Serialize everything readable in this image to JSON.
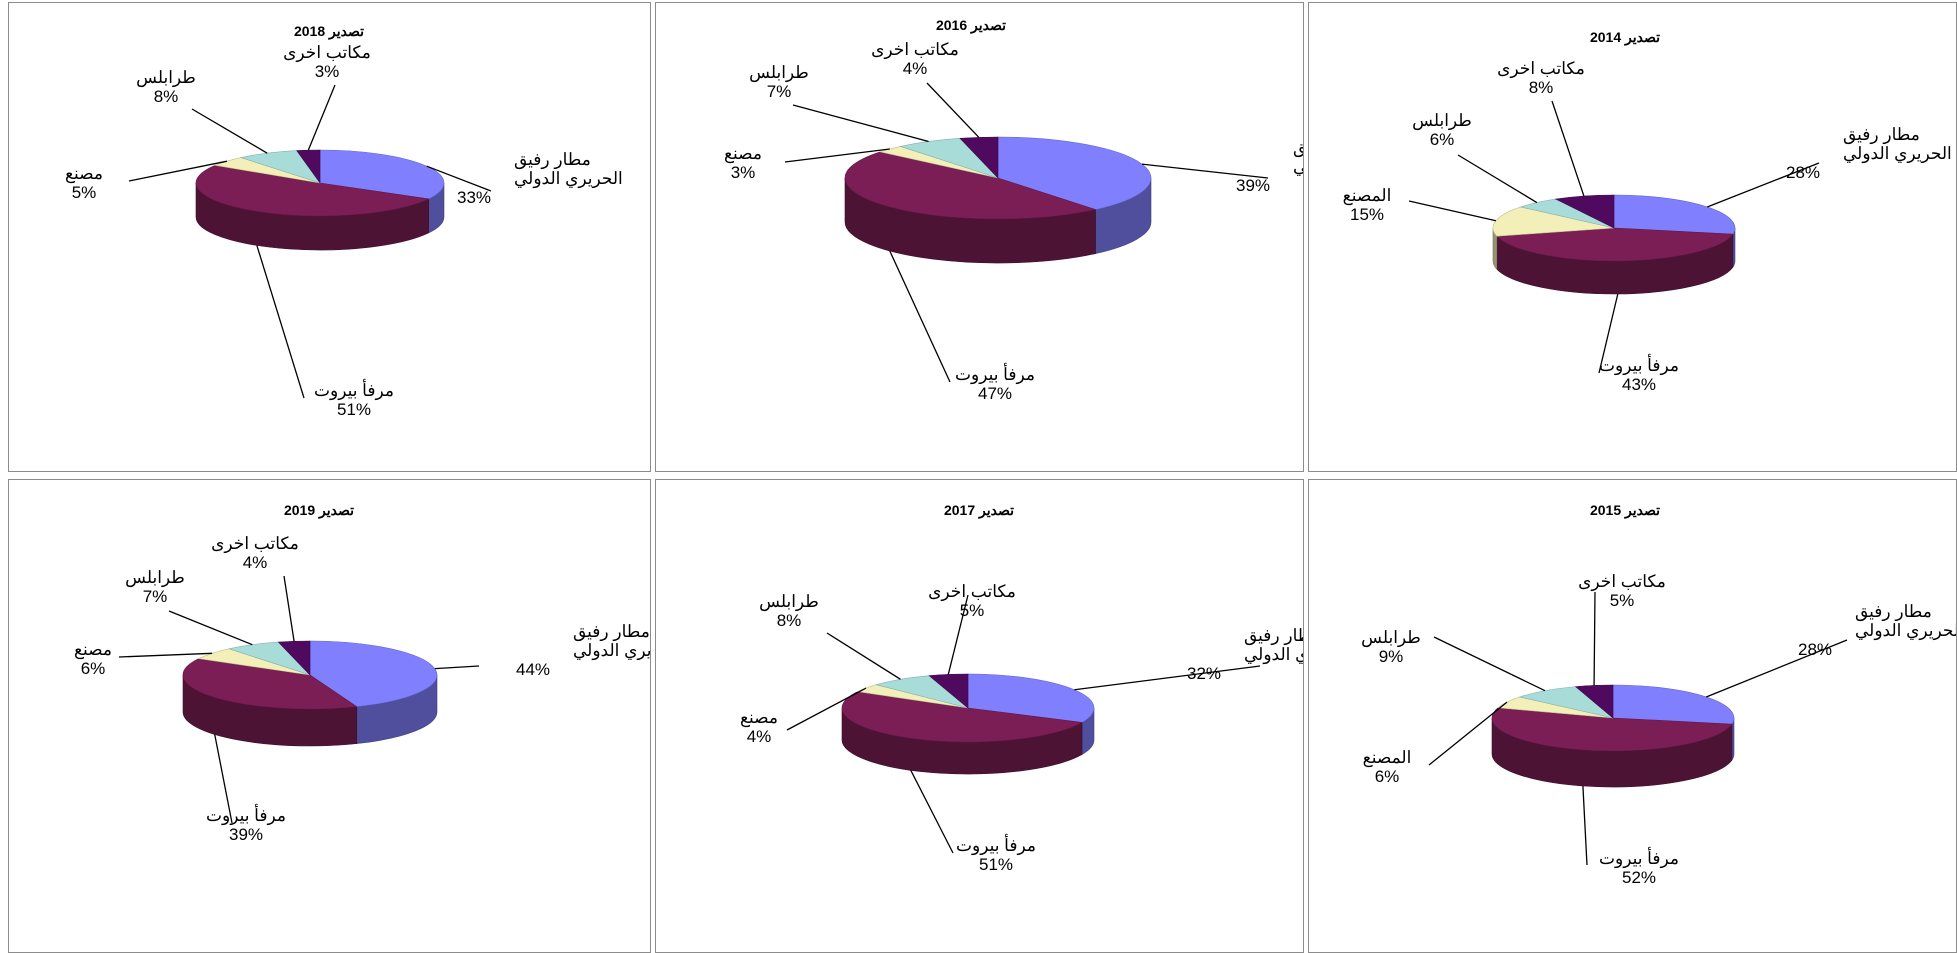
{
  "colors": {
    "airport": "#8080ff",
    "port": "#7b1e56",
    "factory": "#f3efb8",
    "tripoli": "#a7dcd9",
    "other": "#4f0a5f"
  },
  "chart_data": [
    {
      "type": "pie",
      "title": "تصدير 2018",
      "slices": [
        {
          "key": "airport",
          "label": [
            "مطار رفيق",
            "الحريري الدولي"
          ],
          "value": 33
        },
        {
          "key": "port",
          "label": [
            "مرفأ بيروت"
          ],
          "value": 51
        },
        {
          "key": "factory",
          "label": [
            "مصنع"
          ],
          "value": 5
        },
        {
          "key": "tripoli",
          "label": [
            "طرابلس"
          ],
          "value": 8
        },
        {
          "key": "other",
          "label": [
            "مكاتب اخرى"
          ],
          "value": 3
        }
      ],
      "value_labels": [
        "33%",
        "51%",
        "5%",
        "8%",
        "3%"
      ]
    },
    {
      "type": "pie",
      "title": "تصدير 2016",
      "slices": [
        {
          "key": "airport",
          "label": [
            "مطار رفيق",
            "الحريري الدولي"
          ],
          "value": 39
        },
        {
          "key": "port",
          "label": [
            "مرفأ بيروت"
          ],
          "value": 47
        },
        {
          "key": "factory",
          "label": [
            "مصنع"
          ],
          "value": 3
        },
        {
          "key": "tripoli",
          "label": [
            "طرابلس"
          ],
          "value": 7
        },
        {
          "key": "other",
          "label": [
            "مكاتب اخرى"
          ],
          "value": 4
        }
      ],
      "value_labels": [
        "39%",
        "47%",
        "3%",
        "7%",
        "4%"
      ]
    },
    {
      "type": "pie",
      "title": "تصدير 2014",
      "slices": [
        {
          "key": "airport",
          "label": [
            "مطار رفيق",
            "الحريري الدولي"
          ],
          "value": 28
        },
        {
          "key": "port",
          "label": [
            "مرفأ بيروت"
          ],
          "value": 43
        },
        {
          "key": "factory",
          "label": [
            "المصنع"
          ],
          "value": 15
        },
        {
          "key": "tripoli",
          "label": [
            "طرابلس"
          ],
          "value": 6
        },
        {
          "key": "other",
          "label": [
            "مكاتب اخرى"
          ],
          "value": 8
        }
      ],
      "value_labels": [
        "28%",
        "43%",
        "15%",
        "6%",
        "8%"
      ]
    },
    {
      "type": "pie",
      "title": "تصدير 2019",
      "slices": [
        {
          "key": "airport",
          "label": [
            "مطار رفيق",
            "الحريري الدولي"
          ],
          "value": 44
        },
        {
          "key": "port",
          "label": [
            "مرفأ بيروت"
          ],
          "value": 39
        },
        {
          "key": "factory",
          "label": [
            "مصنع"
          ],
          "value": 6
        },
        {
          "key": "tripoli",
          "label": [
            "طرابلس"
          ],
          "value": 7
        },
        {
          "key": "other",
          "label": [
            "مكاتب اخرى"
          ],
          "value": 4
        }
      ],
      "value_labels": [
        "44%",
        "39%",
        "6%",
        "7%",
        "4%"
      ]
    },
    {
      "type": "pie",
      "title": "تصدير 2017",
      "slices": [
        {
          "key": "airport",
          "label": [
            "مطار رفيق",
            "الحريري الدولي"
          ],
          "value": 32
        },
        {
          "key": "port",
          "label": [
            "مرفأ بيروت"
          ],
          "value": 51
        },
        {
          "key": "factory",
          "label": [
            "مصنع"
          ],
          "value": 4
        },
        {
          "key": "tripoli",
          "label": [
            "طرابلس"
          ],
          "value": 8
        },
        {
          "key": "other",
          "label": [
            "مكاتب اخرى"
          ],
          "value": 5
        }
      ],
      "value_labels": [
        "32%",
        "51%",
        "4%",
        "8%",
        "5%"
      ]
    },
    {
      "type": "pie",
      "title": "تصدير 2015",
      "slices": [
        {
          "key": "airport",
          "label": [
            "مطار رفيق",
            "الحريري الدولي"
          ],
          "value": 28
        },
        {
          "key": "port",
          "label": [
            "مرفأ بيروت"
          ],
          "value": 52
        },
        {
          "key": "factory",
          "label": [
            "المصنع"
          ],
          "value": 6
        },
        {
          "key": "tripoli",
          "label": [
            "طرابلس"
          ],
          "value": 9
        },
        {
          "key": "other",
          "label": [
            "مكاتب اخرى"
          ],
          "value": 5
        }
      ],
      "value_labels": [
        "28%",
        "52%",
        "6%",
        "9%",
        "5%"
      ]
    }
  ]
}
